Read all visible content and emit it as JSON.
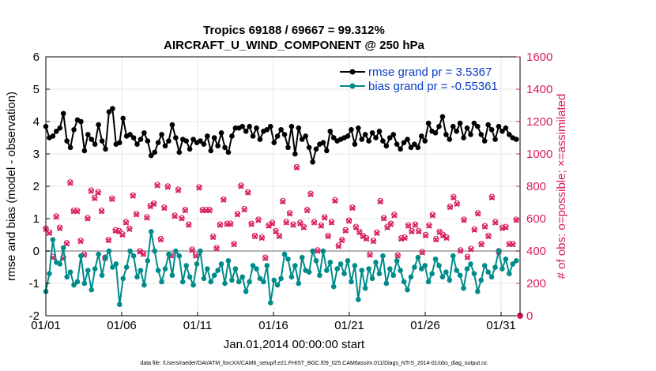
{
  "chart_data": {
    "type": "line",
    "title": "Tropics 69188 / 69667 = 99.312%",
    "subtitle": "AIRCRAFT_U_WIND_COMPONENT @ 250 hPa",
    "xlabel": "Jan.01,2014 00:00:00 start",
    "ylabel": "rmse and bias (model - observation)",
    "ylabel_right": "# of obs: o=possible; ×=assimilated",
    "footnote": "data file: /Users/raeder/DAI/ATM_forcXX/CAM6_setup/f.e21.FHIST_BGC.f09_025.CAM6assim.011/Diags_NTrS_2014-01/obs_diag_output.nc",
    "x_tick_labels": [
      "01/01",
      "01/06",
      "01/11",
      "01/16",
      "01/21",
      "01/26",
      "01/31"
    ],
    "x_tick_days": [
      0,
      5,
      10,
      15,
      20,
      25,
      30
    ],
    "xlim": [
      0,
      31.25
    ],
    "ylim": [
      -2,
      6
    ],
    "y_ticks": [
      "-2",
      "-1",
      "0",
      "1",
      "2",
      "3",
      "4",
      "5",
      "6"
    ],
    "ylim_right": [
      0,
      1600
    ],
    "y_ticks_right": [
      "0",
      "200",
      "400",
      "600",
      "800",
      "1000",
      "1200",
      "1400",
      "1600"
    ],
    "grid": true,
    "legend": {
      "placement": "top-right",
      "entries": [
        "rmse grand pr = 3.5367",
        "bias grand pr = -0.55361"
      ]
    },
    "series": [
      {
        "name": "rmse grand pr = 3.5367",
        "color": "#000000",
        "values": [
          3.85,
          3.5,
          3.55,
          3.7,
          3.8,
          4.25,
          3.4,
          3.2,
          3.75,
          4.05,
          4.0,
          3.1,
          3.6,
          3.45,
          3.3,
          3.9,
          3.4,
          3.15,
          4.3,
          4.4,
          3.3,
          3.35,
          4.1,
          3.55,
          3.6,
          3.5,
          3.3,
          3.45,
          3.65,
          3.4,
          2.95,
          3.05,
          3.35,
          3.6,
          3.25,
          3.4,
          3.9,
          3.5,
          3.05,
          3.45,
          3.4,
          3.15,
          3.45,
          3.35,
          3.4,
          3.3,
          3.55,
          3.1,
          3.5,
          3.25,
          3.65,
          3.2,
          3.05,
          3.55,
          3.8,
          3.8,
          3.85,
          3.7,
          3.85,
          3.55,
          3.8,
          3.45,
          3.7,
          3.75,
          3.85,
          3.35,
          3.55,
          3.75,
          3.6,
          3.2,
          3.85,
          3.0,
          3.8,
          3.45,
          3.55,
          3.2,
          2.75,
          3.15,
          3.3,
          3.35,
          3.1,
          3.7,
          3.5,
          3.4,
          3.45,
          3.5,
          3.55,
          3.75,
          3.3,
          3.8,
          3.45,
          3.6,
          3.4,
          3.65,
          3.5,
          3.7,
          3.4,
          3.25,
          3.5,
          3.6,
          3.3,
          3.15,
          3.35,
          3.45,
          3.2,
          3.3,
          3.2,
          3.55,
          3.4,
          3.95,
          3.7,
          3.65,
          3.85,
          4.15,
          3.6,
          3.45,
          3.85,
          3.7,
          3.95,
          3.5,
          3.8,
          3.6,
          3.95,
          3.85,
          3.6,
          3.4,
          3.9,
          3.75,
          3.45,
          3.85,
          3.7,
          3.8,
          3.6,
          3.5,
          3.45
        ]
      },
      {
        "name": "bias grand pr = -0.55361",
        "color": "#008b8b",
        "values": [
          -1.25,
          -0.7,
          0.35,
          -0.35,
          -0.4,
          0.1,
          -0.8,
          -0.65,
          -1.05,
          -0.95,
          -0.15,
          -1.0,
          -0.6,
          -1.2,
          -0.55,
          -0.1,
          -0.75,
          -0.2,
          0.0,
          -0.5,
          -0.4,
          -1.65,
          -0.85,
          -0.5,
          0.0,
          -0.15,
          -0.8,
          -0.6,
          -1.05,
          -0.3,
          0.6,
          0.0,
          -0.6,
          -0.95,
          -0.55,
          -0.1,
          -0.75,
          0.0,
          -0.15,
          -0.95,
          -0.45,
          -0.8,
          -1.05,
          -0.4,
          0.0,
          -0.85,
          -0.55,
          -0.95,
          -0.75,
          -0.6,
          -0.4,
          -1.0,
          -0.3,
          -0.9,
          -0.55,
          -0.95,
          -0.8,
          -1.25,
          -0.95,
          -0.45,
          -0.55,
          -0.85,
          -0.95,
          -0.45,
          -1.6,
          -0.9,
          -1.05,
          -0.85,
          -0.1,
          -0.25,
          -0.8,
          -0.45,
          -1.0,
          -0.2,
          -0.6,
          -0.65,
          0.0,
          -0.3,
          -0.75,
          0.0,
          -0.6,
          -0.35,
          -1.1,
          -0.55,
          -0.4,
          -0.7,
          -0.3,
          -0.95,
          -0.45,
          -1.5,
          -0.6,
          -1.15,
          -0.55,
          -0.85,
          -0.35,
          -0.7,
          -0.15,
          -1.0,
          -0.55,
          -0.75,
          -0.3,
          -0.6,
          -0.95,
          -1.2,
          -0.8,
          -0.5,
          -0.2,
          -0.55,
          -0.45,
          -0.95,
          -0.7,
          -0.25,
          -0.45,
          -0.8,
          -0.65,
          -0.9,
          -0.15,
          -0.6,
          -0.75,
          -1.15,
          -0.55,
          -0.4,
          -0.7,
          -1.25,
          -0.9,
          -0.45,
          -0.65,
          -0.8,
          -0.5,
          0.0,
          -0.55,
          -0.25,
          -0.7,
          -0.4,
          -0.3
        ]
      },
      {
        "name": "# of obs assimilated",
        "axis": "right",
        "color": "#d81b60",
        "values": [
          535,
          510,
          360,
          610,
          540,
          355,
          445,
          820,
          645,
          645,
          460,
          375,
          600,
          770,
          725,
          760,
          645,
          355,
          465,
          720,
          525,
          520,
          500,
          575,
          535,
          740,
          625,
          395,
          380,
          605,
          675,
          690,
          805,
          470,
          665,
          795,
          370,
          615,
          775,
          600,
          650,
          560,
          405,
          370,
          790,
          650,
          650,
          650,
          485,
          415,
          560,
          715,
          565,
          565,
          440,
          625,
          800,
          655,
          760,
          565,
          490,
          590,
          480,
          355,
          555,
          570,
          520,
          490,
          705,
          575,
          630,
          560,
          915,
          570,
          545,
          650,
          750,
          575,
          400,
          555,
          605,
          490,
          575,
          710,
          430,
          465,
          525,
          585,
          665,
          545,
          515,
          490,
          475,
          375,
          460,
          510,
          705,
          600,
          545,
          565,
          620,
          370,
          475,
          480,
          555,
          520,
          560,
          520,
          390,
          495,
          555,
          620,
          470,
          515,
          495,
          480,
          670,
          730,
          690,
          400,
          590,
          360,
          410,
          530,
          630,
          440,
          550,
          490,
          730,
          575,
          395,
          540,
          545,
          440,
          440,
          590
        ]
      },
      {
        "name": "# of obs possible",
        "axis": "right",
        "color": "#d81b60",
        "values": [
          540,
          515,
          365,
          615,
          545,
          360,
          450,
          825,
          650,
          650,
          465,
          380,
          605,
          775,
          730,
          765,
          650,
          360,
          470,
          725,
          530,
          525,
          505,
          580,
          540,
          745,
          630,
          400,
          385,
          610,
          680,
          695,
          810,
          475,
          670,
          800,
          375,
          620,
          780,
          605,
          655,
          565,
          410,
          375,
          795,
          655,
          655,
          655,
          490,
          420,
          565,
          720,
          570,
          570,
          445,
          630,
          805,
          660,
          765,
          570,
          495,
          595,
          485,
          360,
          560,
          575,
          525,
          495,
          710,
          580,
          635,
          565,
          920,
          575,
          550,
          655,
          755,
          580,
          405,
          560,
          610,
          495,
          580,
          715,
          435,
          470,
          530,
          590,
          670,
          550,
          520,
          495,
          480,
          380,
          465,
          515,
          710,
          605,
          550,
          570,
          625,
          375,
          480,
          485,
          560,
          525,
          565,
          525,
          395,
          500,
          560,
          625,
          475,
          520,
          500,
          485,
          675,
          735,
          695,
          405,
          595,
          365,
          415,
          535,
          635,
          445,
          555,
          495,
          735,
          580,
          400,
          545,
          550,
          445,
          445,
          595
        ]
      }
    ]
  }
}
